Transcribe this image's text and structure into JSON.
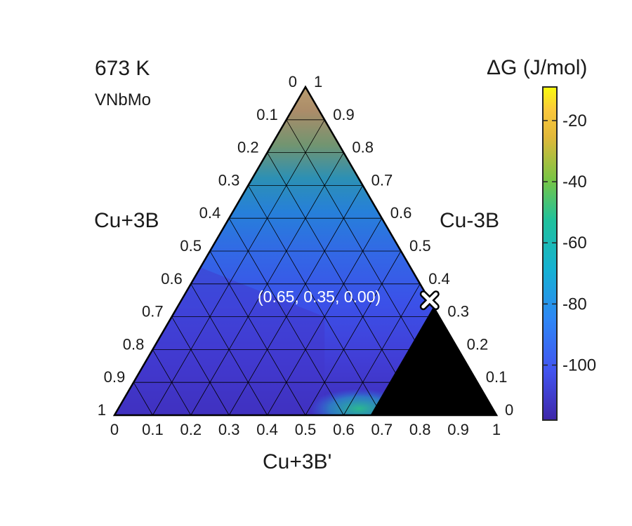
{
  "chart_data": {
    "type": "heatmap",
    "subtype": "ternary",
    "temperature": "673 K",
    "system": "VNbMo",
    "vertex_labels": {
      "left": "Cu+3B",
      "right": "Cu-3B",
      "bottom": "Cu+3B'"
    },
    "axis_ticks": [
      "0",
      "0.1",
      "0.2",
      "0.3",
      "0.4",
      "0.5",
      "0.6",
      "0.7",
      "0.8",
      "0.9",
      "1"
    ],
    "colorbar": {
      "title": "ΔG (J/mol)",
      "range": [
        -118,
        -9
      ],
      "ticks": [
        -20,
        -40,
        -60,
        -80,
        -100
      ],
      "tick_labels": [
        "-20",
        "-40",
        "-60",
        "-80",
        "-100"
      ],
      "colormap": "parula"
    },
    "field_samples": [
      {
        "bottom": 0.0,
        "right": 1.0,
        "dG": -10
      },
      {
        "bottom": 0.0,
        "right": 0.9,
        "dG": -28
      },
      {
        "bottom": 0.0,
        "right": 0.8,
        "dG": -48
      },
      {
        "bottom": 0.0,
        "right": 0.7,
        "dG": -68
      },
      {
        "bottom": 0.0,
        "right": 0.6,
        "dG": -85
      },
      {
        "bottom": 0.0,
        "right": 0.5,
        "dG": -95
      },
      {
        "bottom": 0.0,
        "right": 0.4,
        "dG": -102
      },
      {
        "bottom": 0.0,
        "right": 0.2,
        "dG": -110
      },
      {
        "bottom": 0.0,
        "right": 0.0,
        "dG": -114
      },
      {
        "bottom": 0.5,
        "right": 0.0,
        "dG": -98
      },
      {
        "bottom": 0.62,
        "right": 0.0,
        "dG": -75
      },
      {
        "bottom": 0.65,
        "right": 0.35,
        "dG": -116
      }
    ],
    "forbidden_region_color": "#000000",
    "forbidden_region": {
      "bottom_min": 0.67,
      "right_max": 0.33
    },
    "marker": {
      "point": [
        0.65,
        0.35,
        0.0
      ],
      "label": "(0.65, 0.35, 0.00)",
      "symbol": "x"
    },
    "grid": true
  }
}
